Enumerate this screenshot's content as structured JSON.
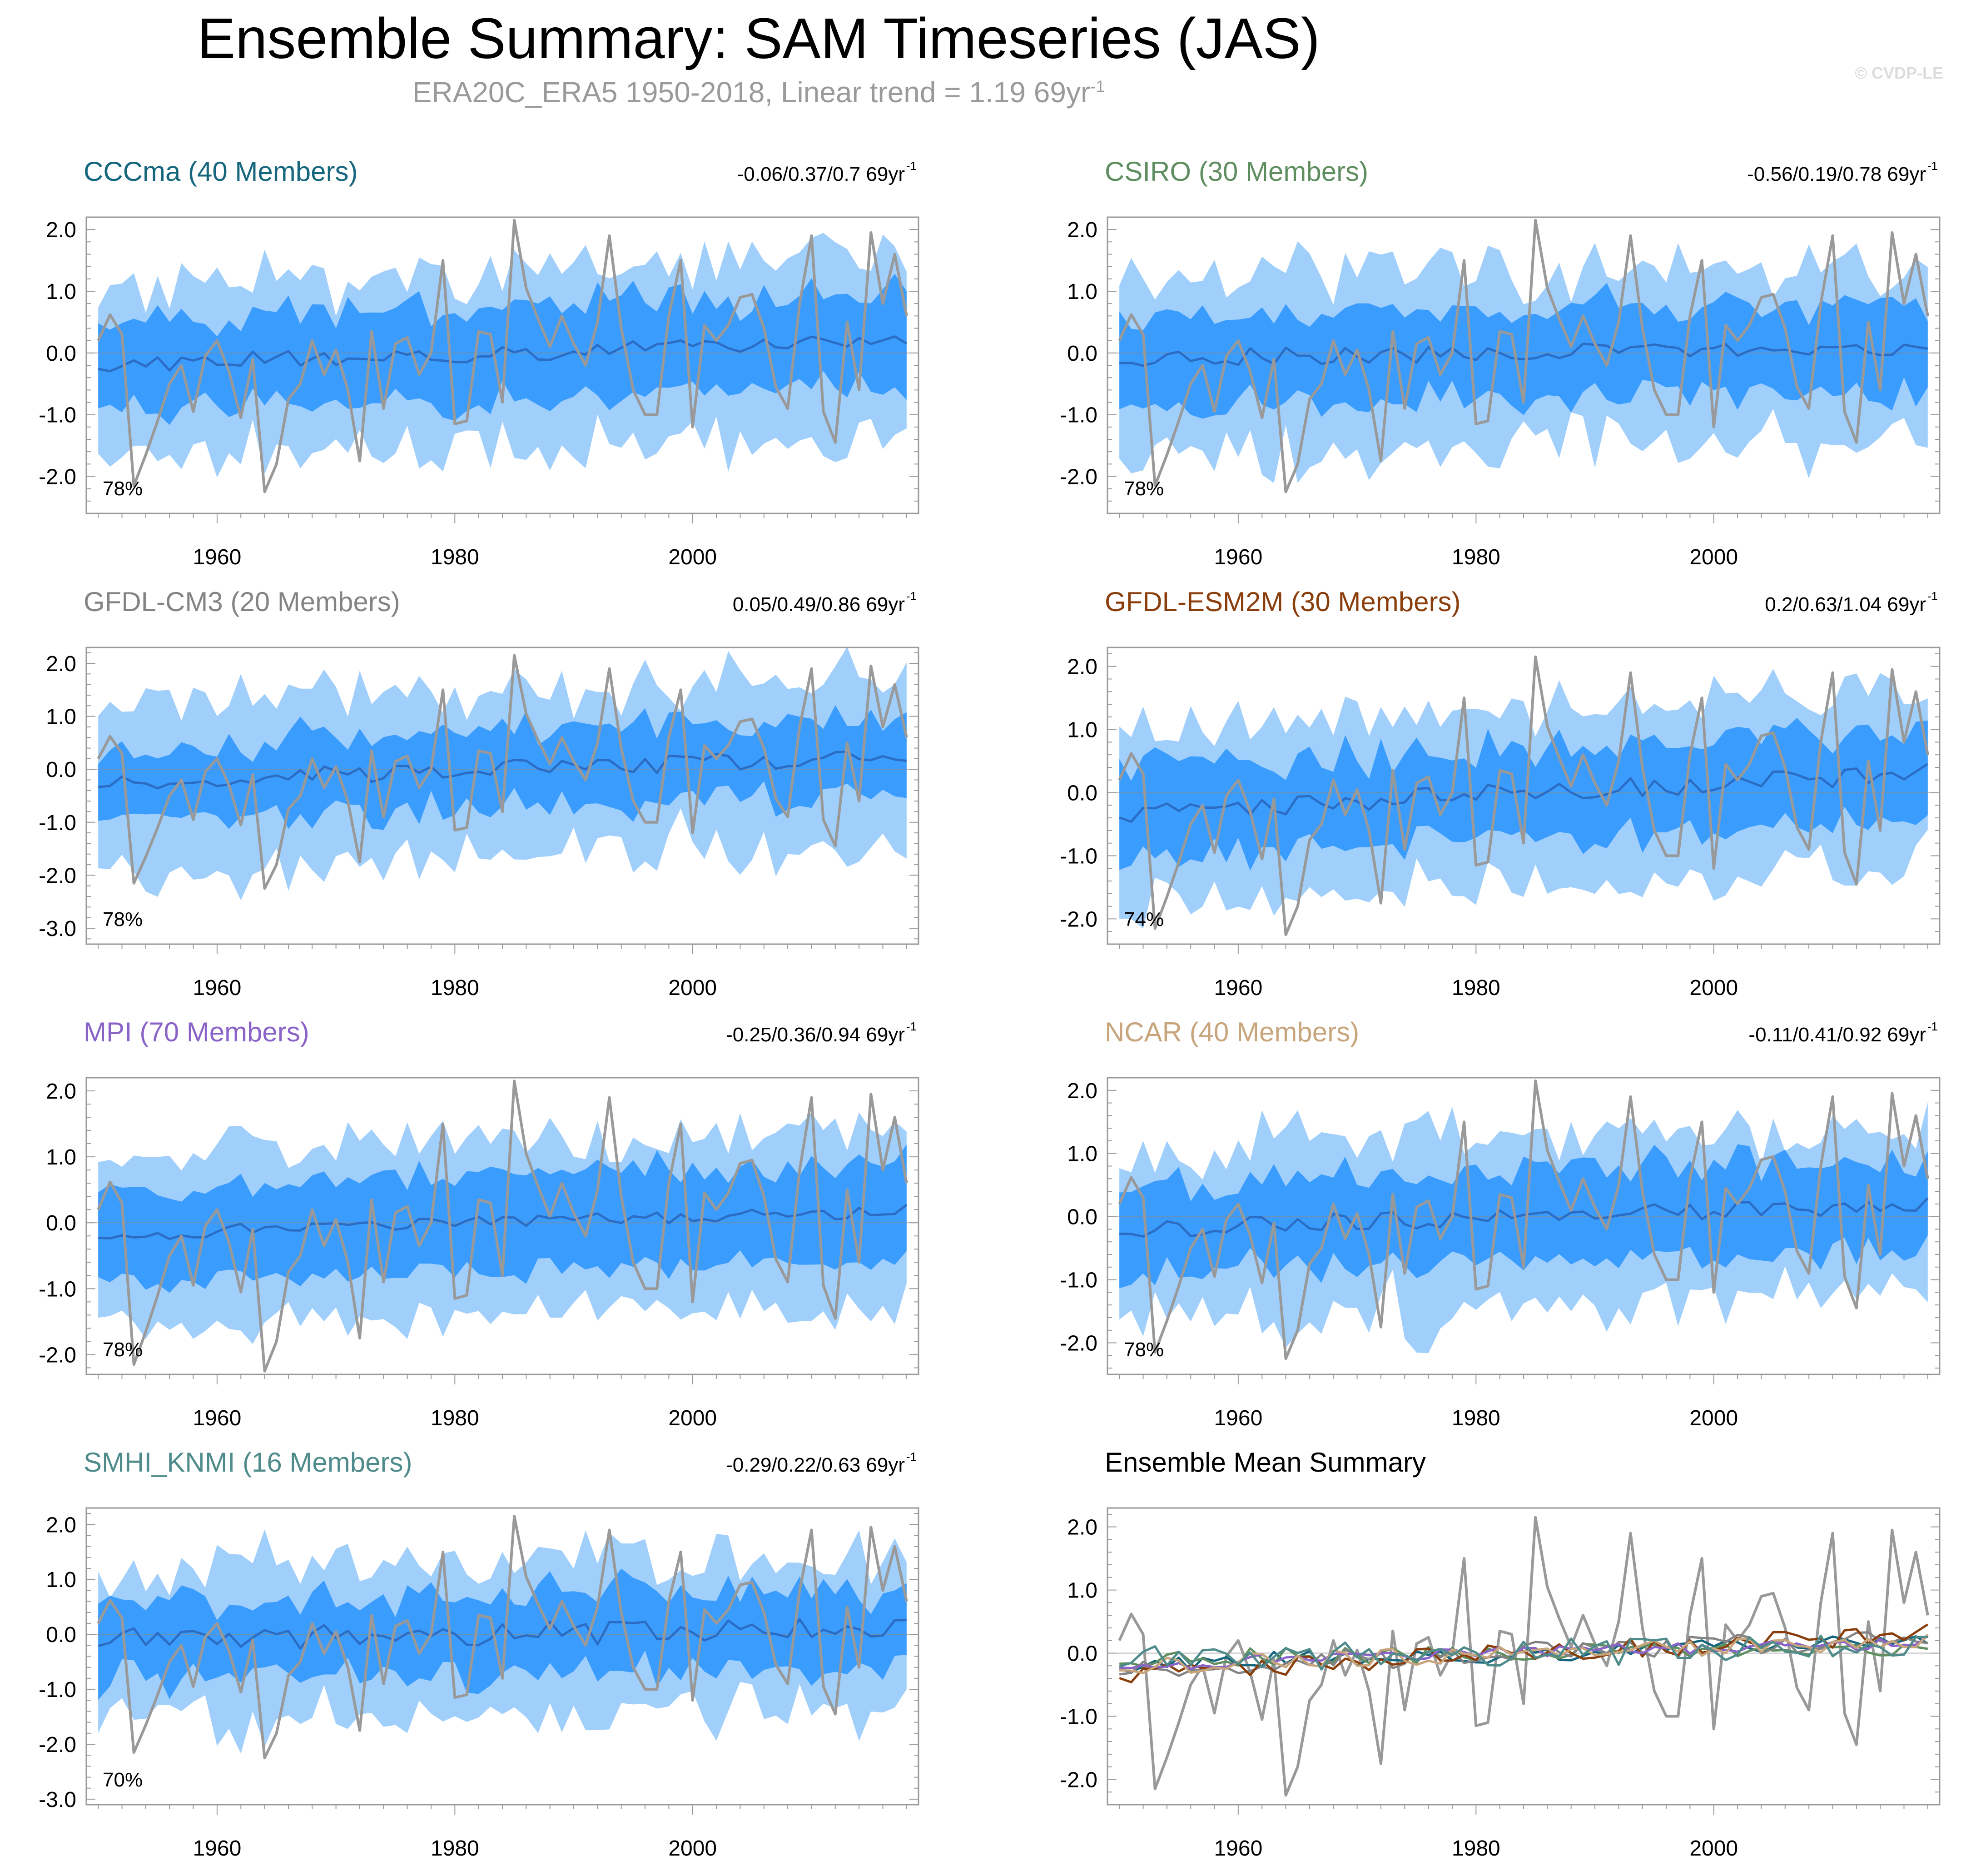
{
  "title": "Ensemble Summary: SAM Timeseries (JAS)",
  "subtitle_main": "ERA20C_ERA5 1950-2018, Linear trend = 1.19 69yr",
  "subtitle_sup": "-1",
  "watermark": "© CVDP-LE",
  "colors": {
    "outer_band": "#a0cffc",
    "inner_band": "#3a9cfd",
    "ensemble_mean": "#2b6cc4",
    "observations": "#999999",
    "zero_line": "#8a8a8a"
  },
  "chart_data": [
    {
      "type": "line",
      "name": "CCCma",
      "title": "CCCma (40 Members)",
      "title_color": "#16677e",
      "trend_text": "-0.06/0.37/0.7 69yr",
      "trend_sup": "-1",
      "percent": "78%",
      "ylim": [
        -2.6,
        2.2
      ],
      "yticks": [
        2.0,
        1.0,
        0.0,
        -1.0,
        -2.0
      ],
      "yticklabels": [
        "2.0",
        "1.0",
        "0.0",
        "-1.0",
        "-2.0"
      ],
      "xticks": [
        1960,
        1980,
        2000
      ],
      "xticklabels": [
        "1960",
        "1980",
        "2000"
      ],
      "band_outer": [
        1.0,
        1.75
      ],
      "band_inner": [
        0.55,
        0.9
      ],
      "band_center": 0.0,
      "mean_amp": 0.14,
      "mean_trend": 0.37,
      "seed": 11
    },
    {
      "type": "line",
      "name": "CSIRO",
      "title": "CSIRO (30 Members)",
      "title_color": "#5f8e60",
      "trend_text": "-0.56/0.19/0.78 69yr",
      "trend_sup": "-1",
      "percent": "78%",
      "ylim": [
        -2.6,
        2.2
      ],
      "yticks": [
        2.0,
        1.0,
        0.0,
        -1.0,
        -2.0
      ],
      "yticklabels": [
        "2.0",
        "1.0",
        "0.0",
        "-1.0",
        "-2.0"
      ],
      "xticks": [
        1960,
        1980,
        2000
      ],
      "xticklabels": [
        "1960",
        "1980",
        "2000"
      ],
      "band_outer": [
        1.0,
        1.7
      ],
      "band_inner": [
        0.55,
        0.95
      ],
      "band_center": 0.0,
      "mean_amp": 0.14,
      "mean_trend": 0.19,
      "seed": 23
    },
    {
      "type": "line",
      "name": "GFDL-CM3",
      "title": "GFDL-CM3 (20 Members)",
      "title_color": "#848484",
      "trend_text": "0.05/0.49/0.86 69yr",
      "trend_sup": "-1",
      "percent": "78%",
      "ylim": [
        -3.3,
        2.3
      ],
      "yticks": [
        2.0,
        1.0,
        0.0,
        -1.0,
        -2.0,
        -3.0
      ],
      "yticklabels": [
        "2.0",
        "1.0",
        "0.0",
        "-1.0",
        "-2.0",
        "-3.0"
      ],
      "xticks": [
        1960,
        1980,
        2000
      ],
      "xticklabels": [
        "1960",
        "1980",
        "2000"
      ],
      "band_outer": [
        1.0,
        1.9
      ],
      "band_inner": [
        0.5,
        0.95
      ],
      "band_center": 0.0,
      "mean_amp": 0.18,
      "mean_trend": 0.49,
      "seed": 37
    },
    {
      "type": "line",
      "name": "GFDL-ESM2M",
      "title": "GFDL-ESM2M (30 Members)",
      "title_color": "#8a3e0c",
      "trend_text": "0.2/0.63/1.04 69yr",
      "trend_sup": "-1",
      "percent": "74%",
      "ylim": [
        -2.4,
        2.3
      ],
      "yticks": [
        2.0,
        1.0,
        0.0,
        -1.0,
        -2.0
      ],
      "yticklabels": [
        "2.0",
        "1.0",
        "0.0",
        "-1.0",
        "-2.0"
      ],
      "xticks": [
        1960,
        1980,
        2000
      ],
      "xticklabels": [
        "1960",
        "1980",
        "2000"
      ],
      "band_outer": [
        1.0,
        1.6
      ],
      "band_inner": [
        0.55,
        0.9
      ],
      "band_center": 0.0,
      "mean_amp": 0.16,
      "mean_trend": 0.63,
      "seed": 41
    },
    {
      "type": "line",
      "name": "MPI",
      "title": "MPI (70 Members)",
      "title_color": "#8a63c8",
      "trend_text": "-0.25/0.36/0.94 69yr",
      "trend_sup": "-1",
      "percent": "78%",
      "ylim": [
        -2.3,
        2.2
      ],
      "yticks": [
        2.0,
        1.0,
        0.0,
        -1.0,
        -2.0
      ],
      "yticklabels": [
        "2.0",
        "1.0",
        "0.0",
        "-1.0",
        "-2.0"
      ],
      "xticks": [
        1960,
        1980,
        2000
      ],
      "xticklabels": [
        "1960",
        "1980",
        "2000"
      ],
      "band_outer": [
        1.05,
        1.45
      ],
      "band_inner": [
        0.6,
        0.85
      ],
      "band_center": 0.0,
      "mean_amp": 0.1,
      "mean_trend": 0.36,
      "seed": 53
    },
    {
      "type": "line",
      "name": "NCAR",
      "title": "NCAR (40 Members)",
      "title_color": "#c8a57c",
      "trend_text": "-0.11/0.41/0.92 69yr",
      "trend_sup": "-1",
      "percent": "78%",
      "ylim": [
        -2.5,
        2.2
      ],
      "yticks": [
        2.0,
        1.0,
        0.0,
        -1.0,
        -2.0
      ],
      "yticklabels": [
        "2.0",
        "1.0",
        "0.0",
        "-1.0",
        "-2.0"
      ],
      "xticks": [
        1960,
        1980,
        2000
      ],
      "xticklabels": [
        "1960",
        "1980",
        "2000"
      ],
      "band_outer": [
        1.0,
        1.6
      ],
      "band_inner": [
        0.55,
        0.9
      ],
      "band_center": 0.0,
      "mean_amp": 0.14,
      "mean_trend": 0.41,
      "seed": 67
    },
    {
      "type": "line",
      "name": "SMHI_KNMI",
      "title": "SMHI_KNMI (16 Members)",
      "title_color": "#4f8b8b",
      "trend_text": "-0.29/0.22/0.63 69yr",
      "trend_sup": "-1",
      "percent": "70%",
      "ylim": [
        -3.1,
        2.3
      ],
      "yticks": [
        2.0,
        1.0,
        0.0,
        -1.0,
        -2.0,
        -3.0
      ],
      "yticklabels": [
        "2.0",
        "1.0",
        "0.0",
        "-1.0",
        "-2.0",
        "-3.0"
      ],
      "xticks": [
        1960,
        1980,
        2000
      ],
      "xticklabels": [
        "1960",
        "1980",
        "2000"
      ],
      "band_outer": [
        1.0,
        1.7
      ],
      "band_inner": [
        0.5,
        0.95
      ],
      "band_center": 0.0,
      "mean_amp": 0.22,
      "mean_trend": 0.22,
      "seed": 79
    },
    {
      "type": "line",
      "name": "Ensemble Mean Summary",
      "title": "Ensemble Mean Summary",
      "title_color": "#000000",
      "summary": true,
      "ylim": [
        -2.4,
        2.3
      ],
      "yticks": [
        2.0,
        1.0,
        0.0,
        -1.0,
        -2.0
      ],
      "yticklabels": [
        "2.0",
        "1.0",
        "0.0",
        "-1.0",
        "-2.0"
      ],
      "xticks": [
        1960,
        1980,
        2000
      ],
      "xticklabels": [
        "1960",
        "1980",
        "2000"
      ]
    }
  ],
  "observations": {
    "name": "ERA20C_ERA5",
    "years": [
      1950,
      2018
    ],
    "values": [
      0.2,
      0.62,
      0.3,
      -2.15,
      -1.65,
      -1.1,
      -0.5,
      -0.2,
      -0.95,
      -0.05,
      0.2,
      -0.3,
      -1.05,
      -0.1,
      -2.25,
      -1.8,
      -0.75,
      -0.5,
      0.2,
      -0.35,
      0.05,
      -0.6,
      -1.75,
      0.35,
      -0.9,
      0.15,
      0.25,
      -0.35,
      0.0,
      1.5,
      -1.15,
      -1.1,
      0.35,
      0.3,
      -0.8,
      2.15,
      1.05,
      0.55,
      0.1,
      0.6,
      0.15,
      -0.2,
      0.5,
      1.9,
      0.4,
      -0.6,
      -1.0,
      -1.0,
      0.6,
      1.5,
      -1.2,
      0.45,
      0.2,
      0.45,
      0.9,
      0.95,
      0.4,
      -0.55,
      -0.9,
      0.8,
      1.9,
      -0.95,
      -1.45,
      0.5,
      -0.6,
      1.95,
      0.8,
      1.6,
      0.6
    ]
  },
  "mean_series_colors": [
    "#16677e",
    "#5f8e60",
    "#848484",
    "#8a3e0c",
    "#8a63c8",
    "#c8a57c",
    "#4f8b8b"
  ]
}
